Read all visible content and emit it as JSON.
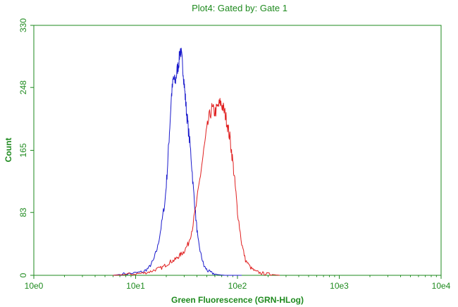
{
  "chart_data": {
    "type": "line",
    "title": "Plot4:  Gated by: Gate 1",
    "xlabel": "Green Fluorescence (GRN-HLog)",
    "ylabel": "Count",
    "xscale": "log",
    "xlim": [
      1,
      10000
    ],
    "ylim": [
      0,
      330
    ],
    "x_ticks": [
      {
        "value": 1,
        "label": "10e0"
      },
      {
        "value": 10,
        "label": "10e1"
      },
      {
        "value": 100,
        "label": "10e2"
      },
      {
        "value": 1000,
        "label": "10e3"
      },
      {
        "value": 10000,
        "label": "10e4"
      }
    ],
    "y_ticks": [
      {
        "value": 0,
        "label": "0"
      },
      {
        "value": 83,
        "label": "83"
      },
      {
        "value": 165,
        "label": "165"
      },
      {
        "value": 248,
        "label": "248"
      },
      {
        "value": 330,
        "label": "330"
      }
    ],
    "grid": false,
    "legend": "none",
    "series": [
      {
        "color": "#1a1acc",
        "x": [
          6,
          8,
          10,
          12,
          13.5,
          15,
          16.5,
          18,
          19.5,
          20.5,
          21.5,
          22.5,
          23.5,
          24.5,
          25.5,
          26.5,
          27.5,
          28.5,
          29.5,
          30.5,
          31.5,
          33,
          35,
          37,
          39,
          41,
          44,
          47,
          51,
          56,
          63,
          75,
          90,
          110
        ],
        "values": [
          0,
          2,
          3,
          5,
          10,
          20,
          38,
          68,
          100,
          140,
          190,
          238,
          260,
          255,
          270,
          280,
          300,
          285,
          265,
          240,
          218,
          192,
          158,
          112,
          76,
          46,
          26,
          12,
          6,
          3,
          1,
          0,
          0,
          0
        ]
      },
      {
        "color": "#e02020",
        "x": [
          6,
          8,
          10,
          12,
          14,
          16,
          18,
          20,
          22,
          24,
          26,
          28,
          30,
          33,
          36,
          40,
          44,
          48,
          52,
          56,
          60,
          64,
          68,
          72,
          76,
          80,
          85,
          90,
          95,
          100,
          110,
          120,
          135,
          150,
          170,
          190,
          220,
          260
        ],
        "values": [
          0,
          1,
          2,
          3,
          5,
          8,
          10,
          14,
          18,
          20,
          24,
          28,
          32,
          42,
          62,
          98,
          140,
          175,
          205,
          220,
          215,
          222,
          228,
          222,
          212,
          198,
          178,
          150,
          118,
          85,
          42,
          20,
          10,
          5,
          3,
          2,
          1,
          0
        ]
      }
    ]
  }
}
